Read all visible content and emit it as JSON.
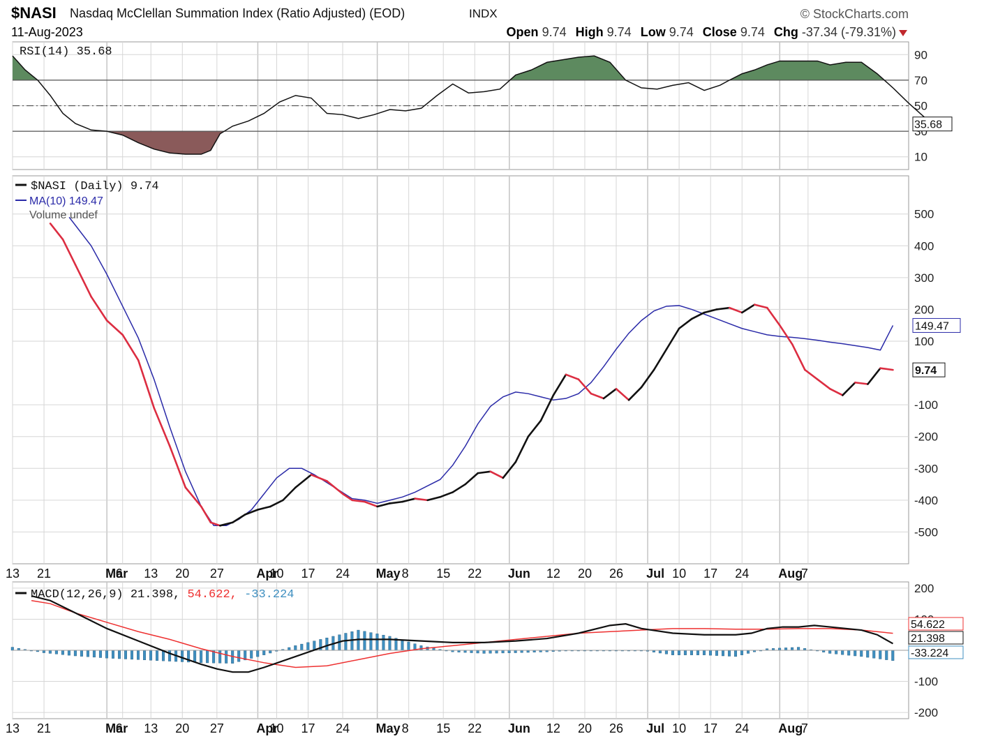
{
  "header": {
    "symbol": "$NASI",
    "name": "Nasdaq McClellan Summation Index (Ratio Adjusted) (EOD)",
    "exchange": "INDX",
    "credit": "StockCharts.com",
    "date": "11-Aug-2023",
    "open_label": "Open",
    "open": "9.74",
    "high_label": "High",
    "high": "9.74",
    "low_label": "Low",
    "low": "9.74",
    "close_label": "Close",
    "close": "9.74",
    "chg_label": "Chg",
    "chg": "-37.34 (-79.31%)"
  },
  "colors": {
    "price_up": "#111111",
    "price_down": "#dc2d41",
    "ma": "#2a2aa8",
    "rsi_overbought_fill": "#5d8a5f",
    "rsi_oversold_fill": "#8a5a5a",
    "macd_signal": "#ee3030",
    "histogram": "#3f8fc0",
    "grid": "#d6d6d6"
  },
  "chart_data": [
    {
      "type": "line",
      "panel": "rsi",
      "legend": "RSI(14) 35.68",
      "last_value_label": "35.68",
      "ylim": [
        0,
        100
      ],
      "yticks": [
        10,
        30,
        50,
        70,
        90
      ],
      "reference_lines": [
        30,
        50,
        70
      ],
      "series": [
        {
          "name": "RSI(14)",
          "x": [
            0,
            4,
            8,
            12,
            16,
            20,
            25,
            30,
            35,
            40,
            45,
            50,
            55,
            60,
            63,
            66,
            70,
            75,
            80,
            85,
            90,
            95,
            100,
            105,
            110,
            115,
            120,
            125,
            130,
            135,
            140,
            145,
            150,
            155,
            160,
            165,
            170,
            175,
            180,
            185,
            190,
            195,
            200,
            205,
            210,
            215,
            220,
            225,
            228,
            232,
            236,
            240,
            244,
            248,
            252,
            256,
            260,
            265,
            270,
            275,
            280,
            285,
            290,
            295
          ],
          "y": [
            89,
            78,
            70,
            58,
            44,
            36,
            31,
            30,
            27,
            21,
            16,
            13,
            12,
            12,
            15,
            28,
            34,
            38,
            44,
            53,
            58,
            56,
            44,
            43,
            40,
            43,
            47,
            46,
            48,
            58,
            67,
            60,
            61,
            63,
            74,
            78,
            84,
            86,
            88,
            89,
            84,
            70,
            64,
            63,
            66,
            68,
            62,
            66,
            70,
            75,
            78,
            82,
            85,
            85,
            85,
            85,
            82,
            84,
            84,
            75,
            64,
            52,
            41,
            35.68
          ]
        }
      ]
    },
    {
      "type": "line",
      "panel": "price",
      "legend": [
        "$NASI (Daily) 9.74",
        "MA(10) 149.47",
        "Volume undef"
      ],
      "last_value_labels": [
        "149.47",
        "9.74"
      ],
      "ylim": [
        -600,
        620
      ],
      "yticks": [
        -500,
        -400,
        -300,
        -200,
        -100,
        100,
        200,
        300,
        400,
        500
      ],
      "x_ticks": [
        {
          "x": 0,
          "label": "13"
        },
        {
          "x": 10,
          "label": "21"
        },
        {
          "x": 30,
          "label": "Mar"
        },
        {
          "x": 35,
          "label": "6"
        },
        {
          "x": 44,
          "label": "13"
        },
        {
          "x": 54,
          "label": "20"
        },
        {
          "x": 65,
          "label": "27"
        },
        {
          "x": 78,
          "label": "Apr"
        },
        {
          "x": 84,
          "label": "10"
        },
        {
          "x": 94,
          "label": "17"
        },
        {
          "x": 105,
          "label": "24"
        },
        {
          "x": 116,
          "label": "May"
        },
        {
          "x": 126,
          "label": "8"
        },
        {
          "x": 137,
          "label": "15"
        },
        {
          "x": 147,
          "label": "22"
        },
        {
          "x": 158,
          "label": "Jun"
        },
        {
          "x": 172,
          "label": "12"
        },
        {
          "x": 182,
          "label": "20"
        },
        {
          "x": 192,
          "label": "26"
        },
        {
          "x": 202,
          "label": "Jul"
        },
        {
          "x": 212,
          "label": "10"
        },
        {
          "x": 222,
          "label": "17"
        },
        {
          "x": 232,
          "label": "24"
        },
        {
          "x": 244,
          "label": "Aug"
        },
        {
          "x": 253,
          "label": "7"
        }
      ],
      "series": [
        {
          "name": "$NASI (Daily)",
          "x": [
            12,
            16,
            20,
            25,
            30,
            35,
            40,
            45,
            50,
            55,
            60,
            63,
            66,
            70,
            74,
            78,
            82,
            86,
            90,
            95,
            100,
            105,
            108,
            112,
            116,
            120,
            124,
            128,
            132,
            136,
            140,
            144,
            148,
            152,
            156,
            160,
            164,
            168,
            172,
            176,
            180,
            184,
            188,
            192,
            196,
            200,
            204,
            208,
            212,
            216,
            220,
            224,
            228,
            232,
            236,
            240,
            244,
            248,
            252,
            256,
            260,
            264,
            268,
            272,
            276,
            280
          ],
          "y": [
            470,
            420,
            340,
            240,
            165,
            120,
            40,
            -110,
            -230,
            -360,
            -420,
            -470,
            -480,
            -470,
            -445,
            -430,
            -420,
            -400,
            -360,
            -320,
            -340,
            -380,
            -400,
            -405,
            -420,
            -410,
            -405,
            -395,
            -400,
            -390,
            -375,
            -350,
            -315,
            -310,
            -330,
            -280,
            -200,
            -150,
            -70,
            -5,
            -20,
            -65,
            -80,
            -50,
            -85,
            -45,
            10,
            75,
            140,
            170,
            190,
            200,
            205,
            190,
            215,
            205,
            150,
            90,
            10,
            -20,
            -50,
            -70,
            -30,
            -35,
            15,
            9.74
          ]
        },
        {
          "name": "MA(10)",
          "x": [
            18,
            25,
            30,
            35,
            40,
            45,
            50,
            55,
            60,
            64,
            68,
            72,
            76,
            80,
            84,
            88,
            92,
            96,
            100,
            104,
            108,
            112,
            116,
            120,
            124,
            128,
            132,
            136,
            140,
            144,
            148,
            152,
            156,
            160,
            164,
            168,
            172,
            176,
            180,
            184,
            188,
            192,
            196,
            200,
            204,
            208,
            212,
            216,
            220,
            224,
            228,
            232,
            236,
            240,
            244,
            248,
            252,
            256,
            260,
            264,
            268,
            272,
            276,
            280
          ],
          "y": [
            490,
            400,
            310,
            210,
            110,
            -20,
            -170,
            -310,
            -420,
            -480,
            -480,
            -460,
            -430,
            -380,
            -330,
            -300,
            -300,
            -320,
            -345,
            -370,
            -395,
            -400,
            -410,
            -400,
            -390,
            -375,
            -355,
            -335,
            -290,
            -230,
            -160,
            -105,
            -75,
            -60,
            -65,
            -75,
            -85,
            -80,
            -65,
            -30,
            20,
            75,
            125,
            165,
            195,
            210,
            212,
            200,
            185,
            170,
            155,
            140,
            130,
            120,
            115,
            112,
            108,
            103,
            97,
            92,
            86,
            80,
            72,
            149.47
          ]
        }
      ]
    },
    {
      "type": "line",
      "panel": "macd",
      "legend": {
        "label": "MACD(12,26,9)",
        "macd": "21.398",
        "signal": "54.622",
        "histogram": "-33.224"
      },
      "last_value_labels": [
        "54.622",
        "21.398",
        "-33.224"
      ],
      "ylim": [
        -220,
        220
      ],
      "yticks": [
        -200,
        -100,
        100,
        200
      ],
      "series": [
        {
          "name": "MACD",
          "x": [
            6,
            12,
            20,
            30,
            40,
            50,
            60,
            65,
            70,
            75,
            80,
            90,
            100,
            105,
            110,
            120,
            130,
            140,
            150,
            160,
            170,
            180,
            190,
            195,
            200,
            210,
            220,
            230,
            235,
            240,
            245,
            250,
            255,
            260,
            265,
            270,
            275,
            280
          ],
          "y": [
            175,
            160,
            120,
            70,
            30,
            -10,
            -45,
            -60,
            -70,
            -70,
            -55,
            -20,
            15,
            30,
            35,
            35,
            30,
            25,
            25,
            30,
            38,
            55,
            80,
            85,
            70,
            55,
            50,
            50,
            55,
            70,
            75,
            75,
            80,
            75,
            70,
            65,
            50,
            21.398
          ]
        },
        {
          "name": "Signal",
          "x": [
            6,
            12,
            20,
            30,
            40,
            50,
            60,
            70,
            80,
            90,
            100,
            110,
            120,
            130,
            140,
            150,
            160,
            170,
            180,
            190,
            200,
            210,
            220,
            230,
            240,
            250,
            260,
            270,
            280
          ],
          "y": [
            160,
            150,
            120,
            90,
            60,
            35,
            5,
            -20,
            -40,
            -55,
            -50,
            -30,
            -10,
            5,
            15,
            25,
            35,
            45,
            55,
            60,
            65,
            70,
            70,
            68,
            68,
            70,
            70,
            65,
            54.622
          ]
        },
        {
          "name": "Histogram",
          "x": [
            0,
            10,
            20,
            30,
            40,
            50,
            60,
            70,
            80,
            90,
            100,
            110,
            120,
            130,
            140,
            150,
            160,
            170,
            180,
            190,
            200,
            210,
            220,
            230,
            240,
            250,
            260,
            270,
            280
          ],
          "y": [
            10,
            -8,
            -18,
            -25,
            -30,
            -35,
            -40,
            -42,
            -15,
            15,
            40,
            65,
            45,
            15,
            -5,
            -10,
            -8,
            -5,
            0,
            0,
            0,
            -15,
            -15,
            -20,
            5,
            10,
            -10,
            -20,
            -33.224
          ]
        }
      ]
    }
  ]
}
